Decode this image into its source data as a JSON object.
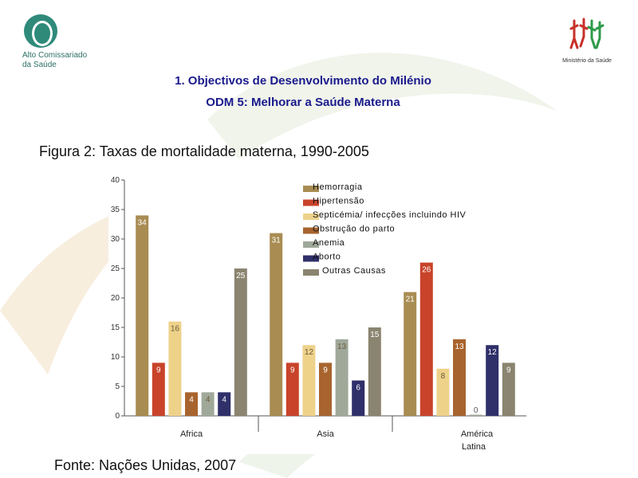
{
  "header": {
    "left_logo_text": [
      "Alto Comissariado",
      "da Saúde"
    ],
    "right_logo_text": "Ministério da Saúde",
    "title_line1": "1. Objectivos de Desenvolvimento do Milénio",
    "title_line2": "ODM 5: Melhorar a Saúde Materna"
  },
  "figure_caption": "Figura 2: Taxas de mortalidade materna, 1990-2005",
  "source_note": "Fonte: Nações Unidas, 2007",
  "chart_data": {
    "type": "bar",
    "title": "",
    "xlabel": "",
    "ylabel": "",
    "ylim": [
      0,
      40
    ],
    "yticks": [
      0,
      5,
      10,
      15,
      20,
      25,
      30,
      35,
      40
    ],
    "grid": false,
    "legend_position": "top-right",
    "categories": [
      "Africa",
      "Asia",
      "América Latina"
    ],
    "series": [
      {
        "name": "Hemorragia",
        "color": "#a88c52",
        "values": [
          34,
          31,
          21
        ]
      },
      {
        "name": "Hipertensão",
        "color": "#c8432a",
        "values": [
          9,
          9,
          26
        ]
      },
      {
        "name": "Septicémia/ infecções incluindo HIV",
        "color": "#eed28a",
        "values": [
          16,
          12,
          8
        ]
      },
      {
        "name": "Obstrução do parto",
        "color": "#a8642e",
        "values": [
          4,
          9,
          13
        ]
      },
      {
        "name": "Anemia",
        "color": "#a0a89a",
        "values": [
          4,
          13,
          0
        ]
      },
      {
        "name": "Aborto",
        "color": "#2f2f6a",
        "values": [
          4,
          6,
          12
        ]
      },
      {
        "name": "Outras Causas",
        "color": "#8a8470",
        "values": [
          25,
          15,
          9
        ]
      }
    ]
  }
}
